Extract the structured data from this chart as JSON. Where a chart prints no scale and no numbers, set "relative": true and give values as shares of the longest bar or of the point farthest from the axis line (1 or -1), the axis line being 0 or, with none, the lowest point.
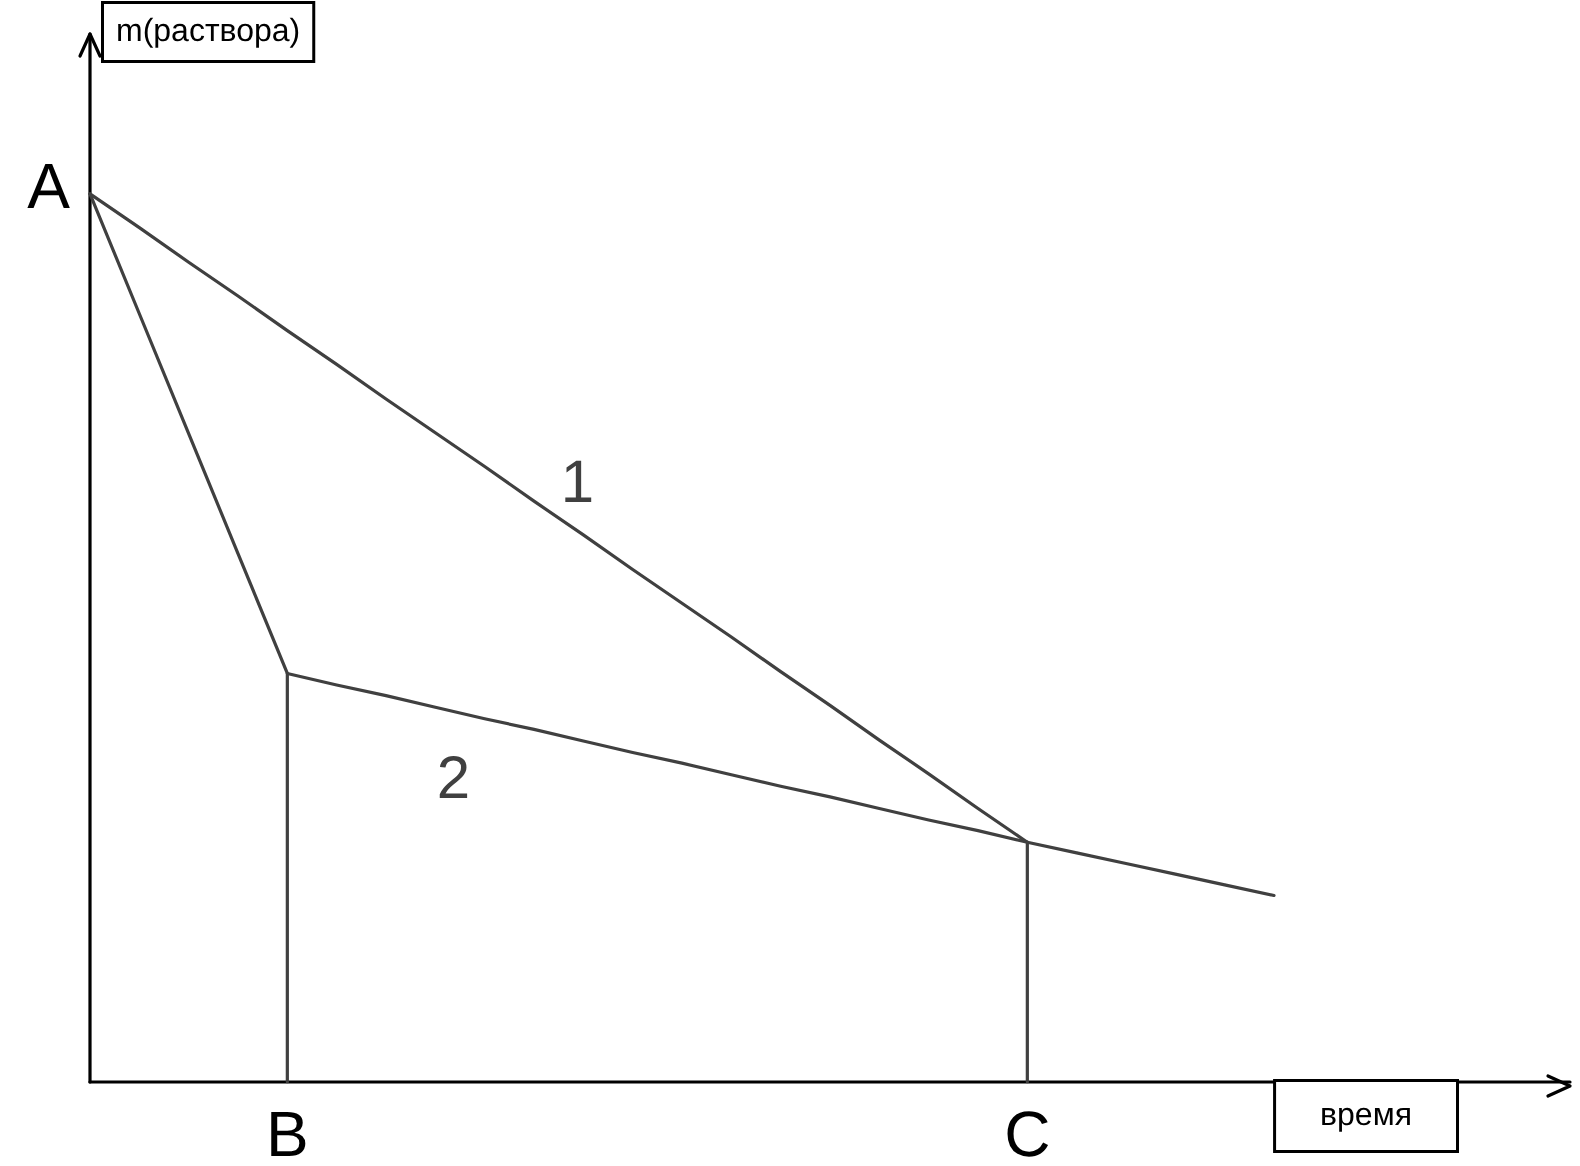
{
  "chart_data": {
    "type": "line",
    "relative": true,
    "tick_labels": "x",
    "xlabel": "время",
    "ylabel": "m(раствора)",
    "categories": [
      null,
      null,
      null,
      null,
      "B",
      null,
      null,
      null,
      null,
      null,
      null,
      null,
      null,
      null,
      null,
      null,
      null,
      null,
      null,
      "C",
      null,
      null,
      null,
      null,
      null,
      null,
      null,
      null,
      null,
      null,
      null
    ],
    "series": [
      {
        "name": "1",
        "color": "#404040",
        "values": [
          1,
          0.962,
          0.923,
          0.885,
          0.846,
          0.808,
          0.769,
          0.731,
          0.693,
          0.654,
          0.616,
          0.577,
          0.539,
          0.501,
          0.462,
          0.424,
          0.385,
          0.347,
          0.308,
          0.27,
          null,
          null,
          null,
          null,
          null,
          null,
          null,
          null,
          null,
          null,
          null
        ]
      },
      {
        "name": "2",
        "color": "#404040",
        "values": [
          1,
          0.865,
          0.73,
          0.595,
          0.46,
          0.447,
          0.435,
          0.422,
          0.409,
          0.397,
          0.384,
          0.371,
          0.359,
          0.346,
          0.333,
          0.321,
          0.308,
          0.295,
          0.283,
          0.27,
          0.258,
          0.246,
          0.234,
          0.222,
          0.21,
          null,
          null,
          null,
          null,
          null,
          null
        ]
      },
      {
        "color": "#404040",
        "x": [
          "B",
          "B"
        ],
        "values": [
          0,
          0.46
        ]
      },
      {
        "color": "#404040",
        "x": [
          "C",
          "C"
        ],
        "values": [
          0,
          0.27
        ]
      }
    ],
    "annotations": [
      "A"
    ]
  }
}
